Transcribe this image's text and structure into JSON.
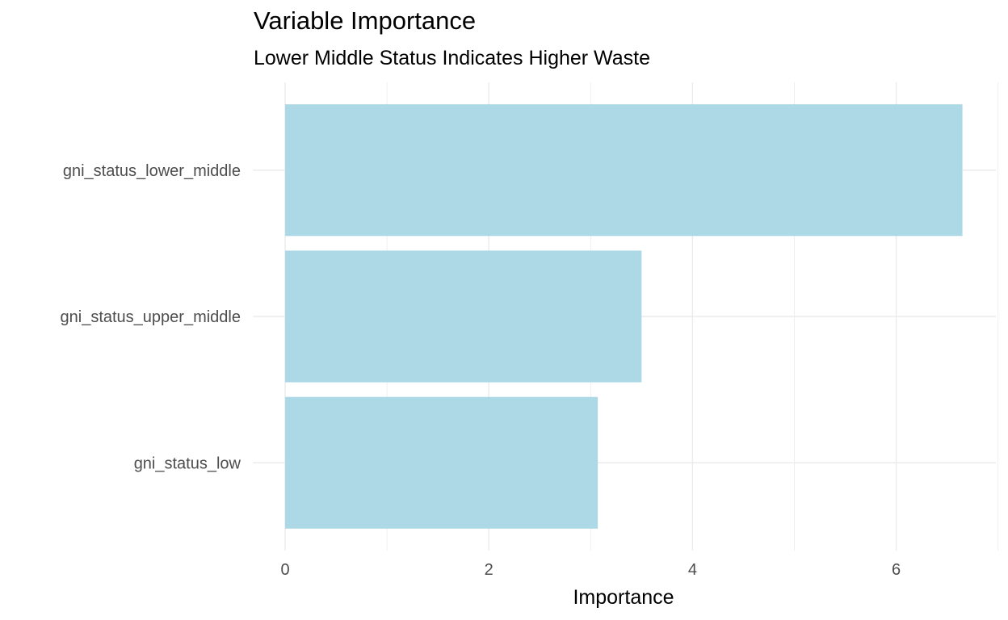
{
  "chart_data": {
    "type": "bar",
    "orientation": "horizontal",
    "title": "Variable Importance",
    "subtitle": "Lower Middle Status Indicates Higher Waste",
    "xlabel": "Importance",
    "ylabel": "",
    "categories": [
      "gni_status_lower_middle",
      "gni_status_upper_middle",
      "gni_status_low"
    ],
    "values": [
      6.65,
      3.5,
      3.07
    ],
    "xlim": [
      0,
      7
    ],
    "x_ticks": [
      "0",
      "2",
      "4",
      "6"
    ],
    "grid": true,
    "legend": "none",
    "colors": {
      "bar": "#add8e6",
      "grid": "#ebebeb",
      "tick_text": "#4d4d4d"
    }
  }
}
